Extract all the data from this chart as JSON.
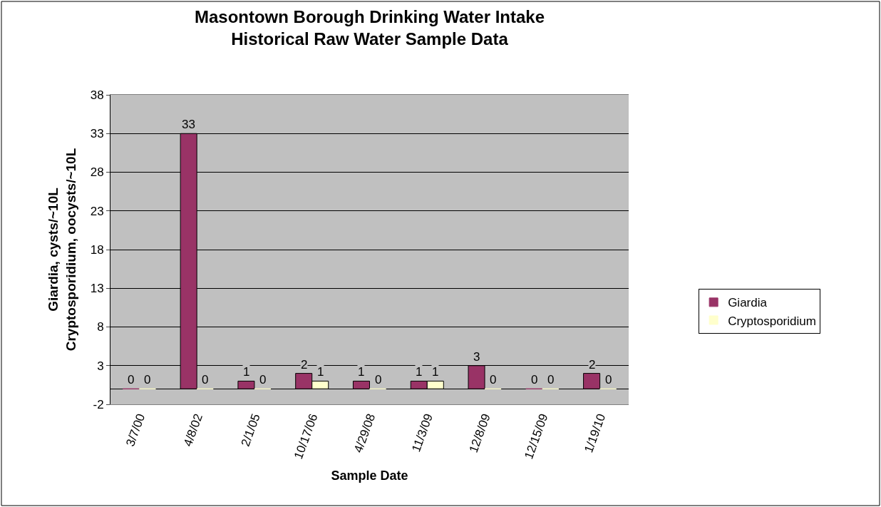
{
  "chart_data": {
    "type": "bar",
    "title": "Masontown Borough Drinking Water Intake\nHistorical Raw Water Sample Data",
    "xlabel": "Sample Date",
    "ylabel": "Giardia, cysts/~10L\nCryptosporidium, oocysts/~10L",
    "categories": [
      "3/7/00",
      "4/8/02",
      "2/1/05",
      "10/17/06",
      "4/29/08",
      "11/3/09",
      "12/8/09",
      "12/15/09",
      "1/19/10"
    ],
    "series": [
      {
        "name": "Giardia",
        "color": "#993366",
        "values": [
          0,
          33,
          1,
          2,
          1,
          1,
          3,
          0,
          2
        ]
      },
      {
        "name": "Cryptosporidium",
        "color": "#ffffcc",
        "values": [
          0,
          0,
          0,
          1,
          0,
          1,
          0,
          0,
          0
        ]
      }
    ],
    "ylim": [
      -2,
      38
    ],
    "yticks": [
      -2,
      3,
      8,
      13,
      18,
      23,
      28,
      33,
      38
    ],
    "grid": "y",
    "legend": "right",
    "data_labels": true
  }
}
